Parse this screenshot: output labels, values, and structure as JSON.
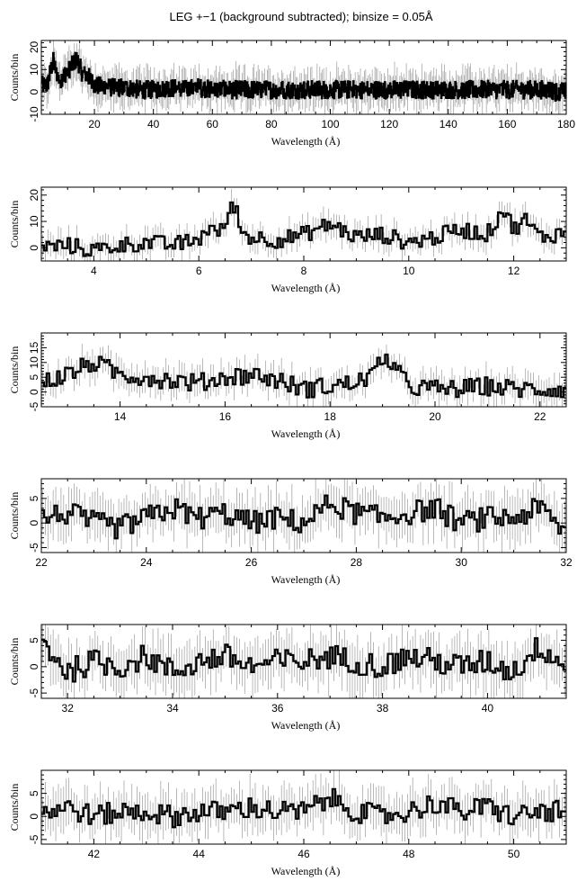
{
  "figure": {
    "title": "LEG +−1 (background subtracted); binsize = 0.05Å"
  },
  "chart_data": [
    {
      "type": "line",
      "style": "step histogram with error bars",
      "xlabel": "Wavelength (Å)",
      "ylabel": "Counts/bin",
      "xlim": [
        2,
        180
      ],
      "ylim": [
        -10,
        23
      ],
      "xticks": [
        20,
        40,
        60,
        80,
        100,
        120,
        140,
        160,
        180
      ],
      "yticks": [
        -10,
        0,
        10,
        20
      ],
      "x": [
        4,
        6,
        8,
        10,
        12,
        14,
        16,
        18,
        20,
        25,
        30,
        35,
        40,
        45,
        50,
        55,
        60,
        65,
        70,
        75,
        80,
        85,
        90,
        95,
        100,
        105,
        110,
        115,
        120,
        125,
        130,
        135,
        140,
        145,
        150,
        155,
        160,
        165,
        170,
        175,
        176,
        180
      ],
      "values": [
        3,
        14,
        5,
        8,
        11,
        15,
        8,
        7,
        3,
        2,
        2,
        1,
        1,
        2,
        1,
        2,
        1,
        1,
        1,
        1,
        1,
        1,
        1,
        1,
        1,
        1,
        1,
        1,
        1,
        1,
        1,
        1,
        1,
        1,
        1,
        1,
        1,
        1,
        1,
        1,
        0,
        0
      ]
    },
    {
      "type": "line",
      "style": "step histogram with error bars",
      "xlabel": "Wavelength (Å)",
      "ylabel": "Counts/bin",
      "xlim": [
        3,
        13
      ],
      "ylim": [
        -5,
        23
      ],
      "xticks": [
        4,
        6,
        8,
        10,
        12
      ],
      "yticks": [
        0,
        10,
        20
      ],
      "x": [
        3.0,
        3.5,
        4.0,
        4.5,
        5.0,
        5.5,
        6.0,
        6.2,
        6.4,
        6.6,
        6.7,
        6.8,
        7.0,
        7.5,
        8.0,
        8.5,
        9.0,
        9.5,
        10.0,
        10.5,
        11.0,
        11.5,
        11.8,
        12.0,
        12.2,
        12.5,
        13.0
      ],
      "values": [
        0,
        1,
        -1,
        1,
        2,
        1,
        3,
        8,
        5,
        14,
        17,
        6,
        4,
        3,
        5,
        9,
        4,
        5,
        2,
        4,
        7,
        5,
        15,
        7,
        11,
        4,
        6
      ]
    },
    {
      "type": "line",
      "style": "step histogram with error bars",
      "xlabel": "Wavelength (Å)",
      "ylabel": "Counts/bin",
      "xlim": [
        12.5,
        22.5
      ],
      "ylim": [
        -5,
        20
      ],
      "xticks": [
        14,
        16,
        18,
        20,
        22
      ],
      "yticks": [
        -5,
        0,
        5,
        10,
        15
      ],
      "x": [
        12.5,
        13.0,
        13.5,
        14.0,
        14.5,
        15.0,
        15.5,
        16.0,
        16.5,
        17.0,
        17.5,
        18.0,
        18.5,
        18.9,
        19.0,
        19.5,
        20.0,
        20.5,
        21.0,
        21.5,
        22.0,
        22.5
      ],
      "values": [
        3,
        6,
        10,
        6,
        5,
        4,
        3,
        5,
        6,
        4,
        1,
        2,
        3,
        7,
        13,
        2,
        1,
        1,
        2,
        1,
        1,
        1
      ]
    },
    {
      "type": "line",
      "style": "step histogram with error bars",
      "xlabel": "Wavelength (Å)",
      "ylabel": "Counts/bin",
      "xlim": [
        22,
        32
      ],
      "ylim": [
        -6,
        9
      ],
      "xticks": [
        22,
        24,
        26,
        28,
        30,
        32
      ],
      "yticks": [
        -5,
        0,
        5
      ],
      "x": [
        22.0,
        22.5,
        23.0,
        23.5,
        24.0,
        24.5,
        25.0,
        25.5,
        26.0,
        26.5,
        27.0,
        27.5,
        28.0,
        28.5,
        29.0,
        29.5,
        30.0,
        30.5,
        31.0,
        31.5,
        32.0
      ],
      "values": [
        1,
        2,
        0,
        -1,
        1,
        3,
        1,
        2,
        0,
        1,
        0,
        4,
        2,
        1,
        2,
        3,
        0,
        1,
        1,
        3,
        -2
      ]
    },
    {
      "type": "line",
      "style": "step histogram with error bars",
      "xlabel": "Wavelength (Å)",
      "ylabel": "Counts/bin",
      "xlim": [
        31.5,
        41.5
      ],
      "ylim": [
        -6,
        8
      ],
      "xticks": [
        32,
        34,
        36,
        38,
        40
      ],
      "yticks": [
        -5,
        0,
        5
      ],
      "x": [
        31.5,
        32.0,
        32.5,
        33.0,
        33.5,
        34.0,
        34.5,
        35.0,
        35.5,
        36.0,
        36.5,
        37.0,
        37.5,
        38.0,
        38.5,
        39.0,
        39.5,
        40.0,
        40.5,
        41.0,
        41.5
      ],
      "values": [
        5,
        -1,
        1,
        0,
        2,
        -1,
        1,
        2,
        0,
        1,
        1,
        2,
        1,
        0,
        2,
        1,
        0,
        1,
        -1,
        4,
        0
      ]
    },
    {
      "type": "line",
      "style": "step histogram with error bars",
      "xlabel": "Wavelength (Å)",
      "ylabel": "Counts/bin",
      "xlim": [
        41,
        51
      ],
      "ylim": [
        -6,
        10
      ],
      "xticks": [
        42,
        44,
        46,
        48,
        50
      ],
      "yticks": [
        -5,
        0,
        5
      ],
      "x": [
        41.0,
        41.5,
        42.0,
        42.5,
        43.0,
        43.5,
        44.0,
        44.5,
        45.0,
        45.5,
        46.0,
        46.5,
        47.0,
        47.5,
        48.0,
        48.5,
        49.0,
        49.5,
        50.0,
        50.5,
        51.0
      ],
      "values": [
        1,
        2,
        0,
        1,
        1,
        0,
        1,
        1,
        2,
        1,
        1,
        4,
        1,
        0,
        1,
        3,
        1,
        2,
        0,
        1,
        1
      ]
    }
  ]
}
